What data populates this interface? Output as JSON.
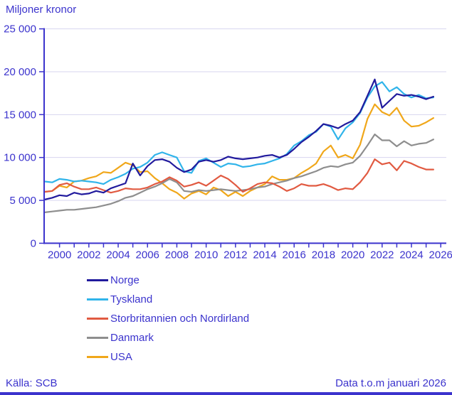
{
  "title": "Miljoner kronor",
  "footer": {
    "source": "Källa: SCB",
    "note": "Data t.o.m januari 2026"
  },
  "colors": {
    "axis_text": "#3b33cd",
    "gridline": "#d7d5ef",
    "bottom_bar": "#3b33cd",
    "background": "#ffffff"
  },
  "chart_data": {
    "type": "line",
    "title": "Miljoner kronor",
    "ylabel": "Miljoner kronor",
    "xlabel": "",
    "ylim": [
      0,
      25000
    ],
    "ytick_values": [
      0,
      5000,
      10000,
      15000,
      20000,
      25000
    ],
    "ytick_labels": [
      "0",
      "5 000",
      "10 000",
      "15 000",
      "20 000",
      "25 000"
    ],
    "xlim": [
      1999.45,
      2026.8
    ],
    "xtick_minor_years": [
      2000,
      2001,
      2002,
      2003,
      2004,
      2005,
      2006,
      2007,
      2008,
      2009,
      2010,
      2011,
      2012,
      2013,
      2014,
      2015,
      2016,
      2017,
      2018,
      2019,
      2020,
      2021,
      2022,
      2023,
      2024,
      2025,
      2026
    ],
    "xtick_labels": [
      "2000",
      "2002",
      "2004",
      "2006",
      "2008",
      "2010",
      "2012",
      "2014",
      "2016",
      "2018",
      "2020",
      "2022",
      "2024",
      "2026"
    ],
    "xtick_label_years": [
      2000,
      2002,
      2004,
      2006,
      2008,
      2010,
      2012,
      2014,
      2016,
      2018,
      2020,
      2022,
      2024,
      2026
    ],
    "grid": "horizontal",
    "legend_position": "bottom",
    "x": [
      1999.5,
      2000,
      2000.5,
      2001,
      2001.5,
      2002,
      2002.5,
      2003,
      2003.5,
      2004,
      2004.5,
      2005,
      2005.5,
      2006,
      2006.5,
      2007,
      2007.5,
      2008,
      2008.5,
      2009,
      2009.5,
      2010,
      2010.5,
      2011,
      2011.5,
      2012,
      2012.5,
      2013,
      2013.5,
      2014,
      2014.5,
      2015,
      2015.5,
      2016,
      2016.5,
      2017,
      2017.5,
      2018,
      2018.5,
      2019,
      2019.5,
      2020,
      2020.5,
      2021,
      2021.5,
      2022,
      2022.5,
      2023,
      2023.5,
      2024,
      2024.5,
      2025,
      2025.5,
      2026
    ],
    "series": [
      {
        "name": "Norge",
        "color": "#211a9d",
        "values": [
          5100,
          5300,
          5600,
          5500,
          5900,
          5700,
          5800,
          6100,
          5900,
          6400,
          6700,
          7000,
          9300,
          7900,
          9000,
          9700,
          9800,
          9500,
          8800,
          8300,
          8600,
          9500,
          9700,
          9500,
          9700,
          10100,
          9900,
          9800,
          9900,
          10000,
          10200,
          10300,
          10000,
          10300,
          11000,
          11800,
          12400,
          13100,
          13900,
          13700,
          13400,
          13900,
          14300,
          15300,
          17200,
          19100,
          15800,
          16600,
          17400,
          17200,
          17300,
          17100,
          16800,
          17100
        ]
      },
      {
        "name": "Tyskland",
        "color": "#30b4ea",
        "values": [
          7200,
          7100,
          7500,
          7400,
          7200,
          7300,
          7200,
          7100,
          6900,
          7400,
          7700,
          8100,
          8700,
          8900,
          9400,
          10300,
          10600,
          10300,
          10000,
          8400,
          8200,
          9600,
          9900,
          9400,
          8900,
          9300,
          9200,
          8900,
          9000,
          9200,
          9300,
          9600,
          9900,
          10400,
          11400,
          11900,
          12600,
          13000,
          13900,
          13600,
          12100,
          13400,
          14100,
          15200,
          17000,
          18300,
          18800,
          17700,
          18200,
          17400,
          17000,
          17300,
          16900,
          17000
        ]
      },
      {
        "name": "Storbritannien och Nordirland",
        "color": "#e15a41",
        "values": [
          6000,
          6100,
          6800,
          7000,
          6600,
          6300,
          6300,
          6500,
          6200,
          5900,
          6100,
          6400,
          6300,
          6300,
          6500,
          6900,
          7200,
          7700,
          7300,
          6600,
          6800,
          7100,
          6700,
          7300,
          7900,
          7500,
          6800,
          6000,
          6400,
          6900,
          7100,
          7000,
          6600,
          6100,
          6400,
          6900,
          6700,
          6700,
          6900,
          6600,
          6200,
          6400,
          6300,
          7100,
          8200,
          9800,
          9200,
          9400,
          8500,
          9600,
          9300,
          8900,
          8600,
          8600
        ]
      },
      {
        "name": "Danmark",
        "color": "#8e8e8e",
        "values": [
          3600,
          3700,
          3800,
          3900,
          3900,
          4000,
          4100,
          4200,
          4400,
          4600,
          4900,
          5300,
          5500,
          5900,
          6300,
          6600,
          7000,
          7500,
          7100,
          6100,
          6000,
          6200,
          6100,
          6200,
          6300,
          6200,
          6100,
          6200,
          6300,
          6500,
          6600,
          6900,
          7100,
          7300,
          7600,
          7800,
          8100,
          8400,
          8800,
          9000,
          8900,
          9200,
          9400,
          10200,
          11400,
          12700,
          12000,
          12000,
          11300,
          11900,
          11400,
          11600,
          11700,
          12100
        ]
      },
      {
        "name": "USA",
        "color": "#f0a71a",
        "values": [
          6000,
          6100,
          6700,
          6500,
          7200,
          7300,
          7600,
          7800,
          8300,
          8200,
          8800,
          9400,
          9100,
          8300,
          8400,
          7600,
          7000,
          6300,
          5900,
          5200,
          5800,
          6100,
          5700,
          6500,
          6200,
          5500,
          6000,
          5500,
          6100,
          6500,
          6900,
          7800,
          7400,
          7400,
          7600,
          8200,
          8700,
          9300,
          10700,
          11400,
          10000,
          10300,
          9900,
          11500,
          14500,
          16200,
          15300,
          14900,
          15800,
          14300,
          13600,
          13700,
          14100,
          14600
        ]
      }
    ]
  }
}
